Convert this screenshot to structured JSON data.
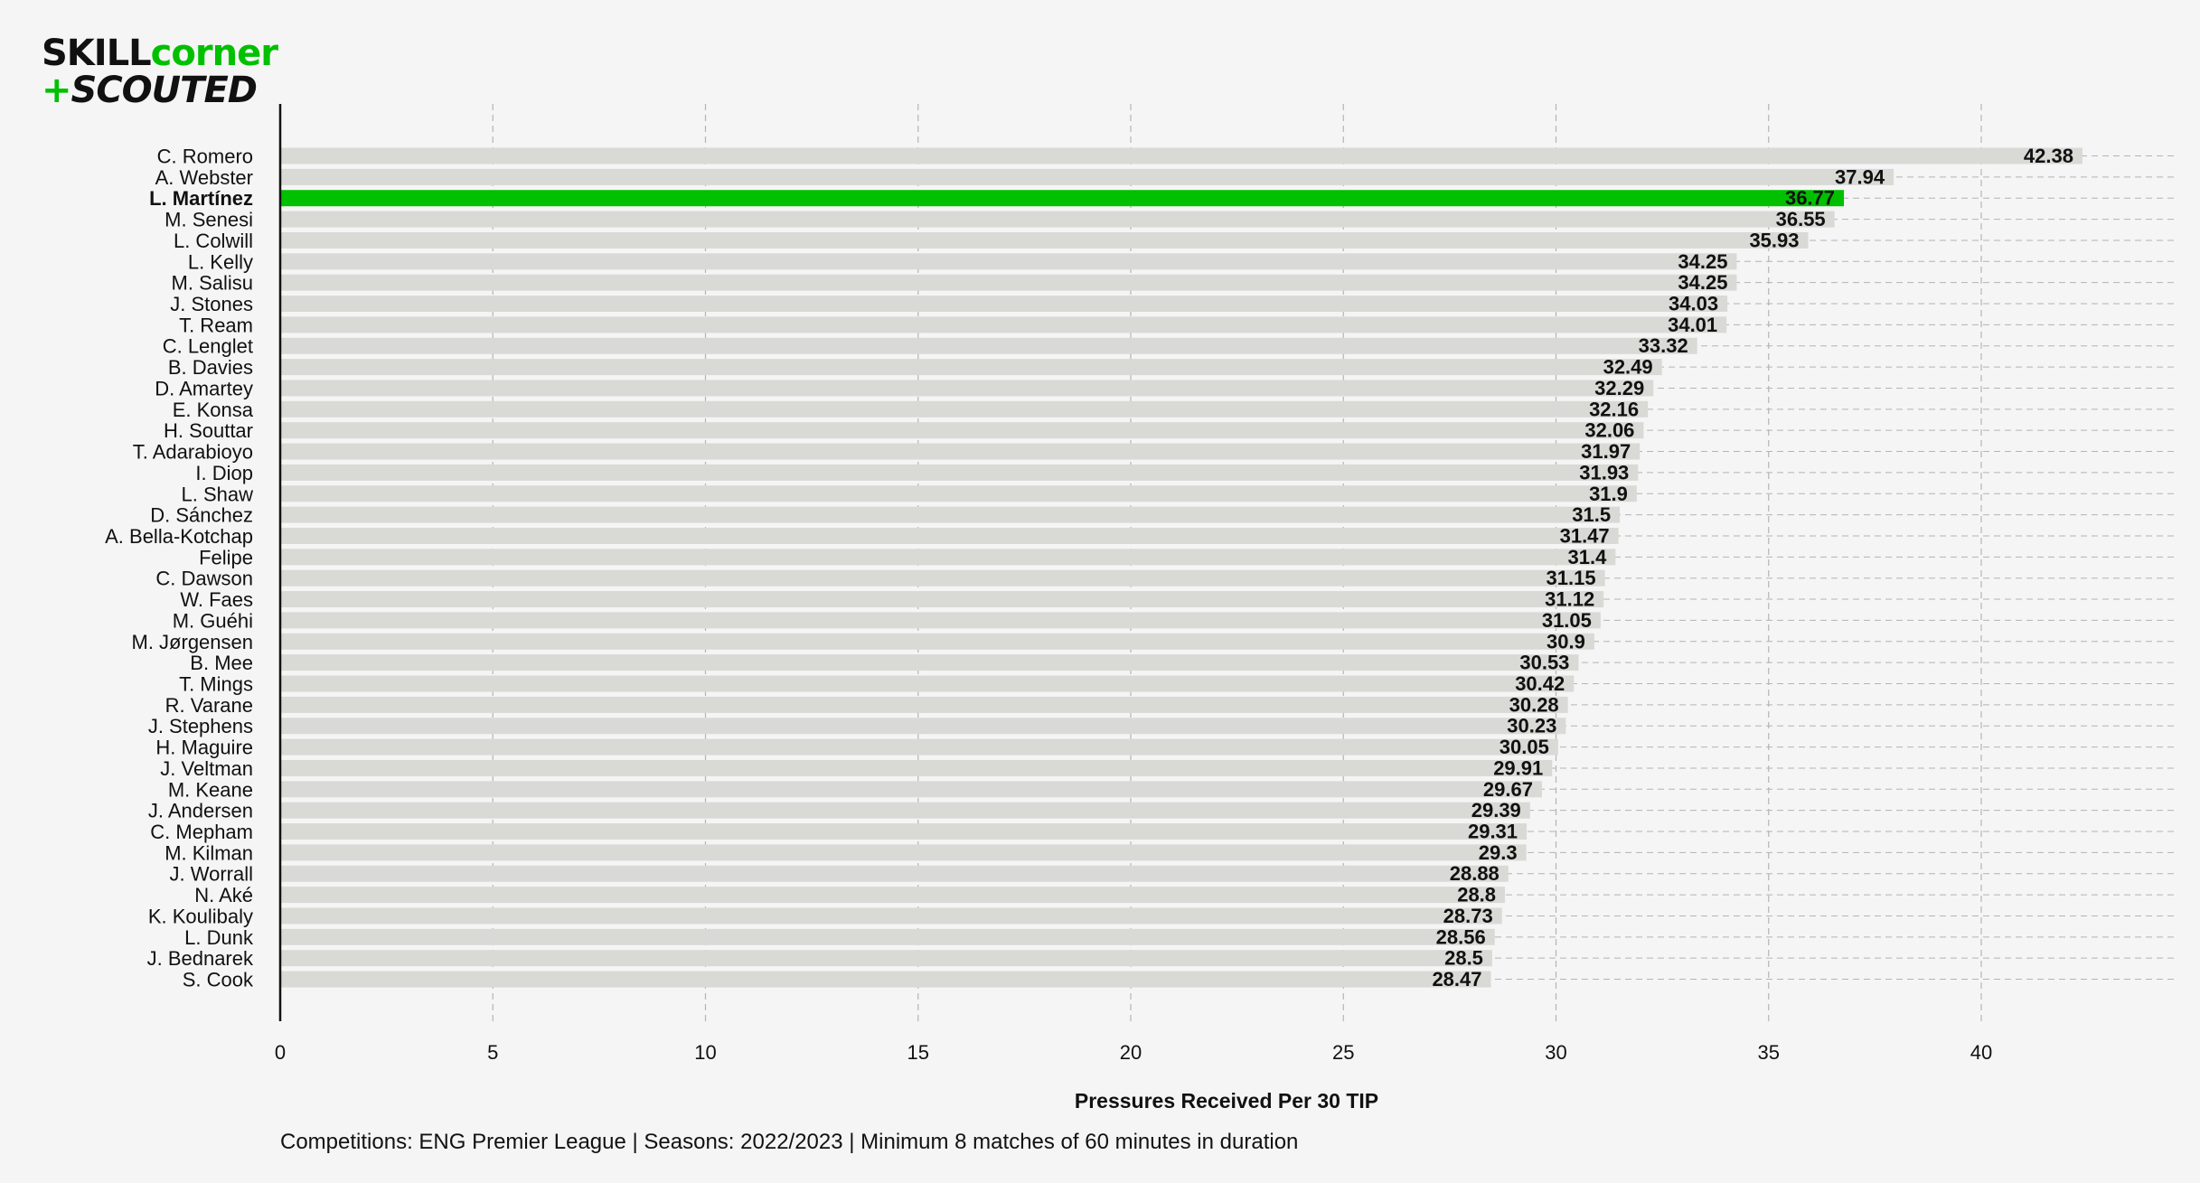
{
  "logo": {
    "word1": "SKILL",
    "word2": "corner",
    "plus": "+",
    "word3": "SCOUTED"
  },
  "footer": "Competitions: ENG Premier League | Seasons: 2022/2023 | Minimum 8 matches of 60 minutes in duration",
  "colors": {
    "bar": "#d9d9d6",
    "highlight": "#00c000",
    "grid": "#b4b4b4",
    "background": "#f5f5f5",
    "text": "#111111"
  },
  "chart_data": {
    "type": "bar",
    "orientation": "horizontal",
    "title": "",
    "xlabel": "Pressures Received Per 30 TIP",
    "ylabel": "",
    "xlim": [
      0,
      44.6
    ],
    "xticks": [
      0,
      5,
      10,
      15,
      20,
      25,
      30,
      35,
      40
    ],
    "grid": "dashed",
    "highlight": "L. Martínez",
    "categories": [
      "C. Romero",
      "A. Webster",
      "L. Martínez",
      "M. Senesi",
      "L. Colwill",
      "L. Kelly",
      "M. Salisu",
      "J. Stones",
      "T. Ream",
      "C. Lenglet",
      "B. Davies",
      "D. Amartey",
      "E. Konsa",
      "H. Souttar",
      "T. Adarabioyo",
      "I. Diop",
      "L. Shaw",
      "D. Sánchez",
      "A. Bella-Kotchap",
      "Felipe",
      "C. Dawson",
      "W. Faes",
      "M. Guéhi",
      "M. Jørgensen",
      "B. Mee",
      "T. Mings",
      "R. Varane",
      "J. Stephens",
      "H. Maguire",
      "J. Veltman",
      "M. Keane",
      "J. Andersen",
      "C. Mepham",
      "M. Kilman",
      "J. Worrall",
      "N. Aké",
      "K. Koulibaly",
      "L. Dunk",
      "J. Bednarek",
      "S. Cook"
    ],
    "values": [
      42.38,
      37.94,
      36.77,
      36.55,
      35.93,
      34.25,
      34.25,
      34.03,
      34.01,
      33.32,
      32.49,
      32.29,
      32.16,
      32.06,
      31.97,
      31.93,
      31.9,
      31.5,
      31.47,
      31.4,
      31.15,
      31.12,
      31.05,
      30.9,
      30.53,
      30.42,
      30.28,
      30.23,
      30.05,
      29.91,
      29.67,
      29.39,
      29.31,
      29.3,
      28.88,
      28.8,
      28.73,
      28.56,
      28.5,
      28.47
    ],
    "labels": [
      "42.38",
      "37.94",
      "36.77",
      "36.55",
      "35.93",
      "34.25",
      "34.25",
      "34.03",
      "34.01",
      "33.32",
      "32.49",
      "32.29",
      "32.16",
      "32.06",
      "31.97",
      "31.93",
      "31.9",
      "31.5",
      "31.47",
      "31.4",
      "31.15",
      "31.12",
      "31.05",
      "30.9",
      "30.53",
      "30.42",
      "30.28",
      "30.23",
      "30.05",
      "29.91",
      "29.67",
      "29.39",
      "29.31",
      "29.3",
      "28.88",
      "28.8",
      "28.73",
      "28.56",
      "28.5",
      "28.47"
    ]
  }
}
